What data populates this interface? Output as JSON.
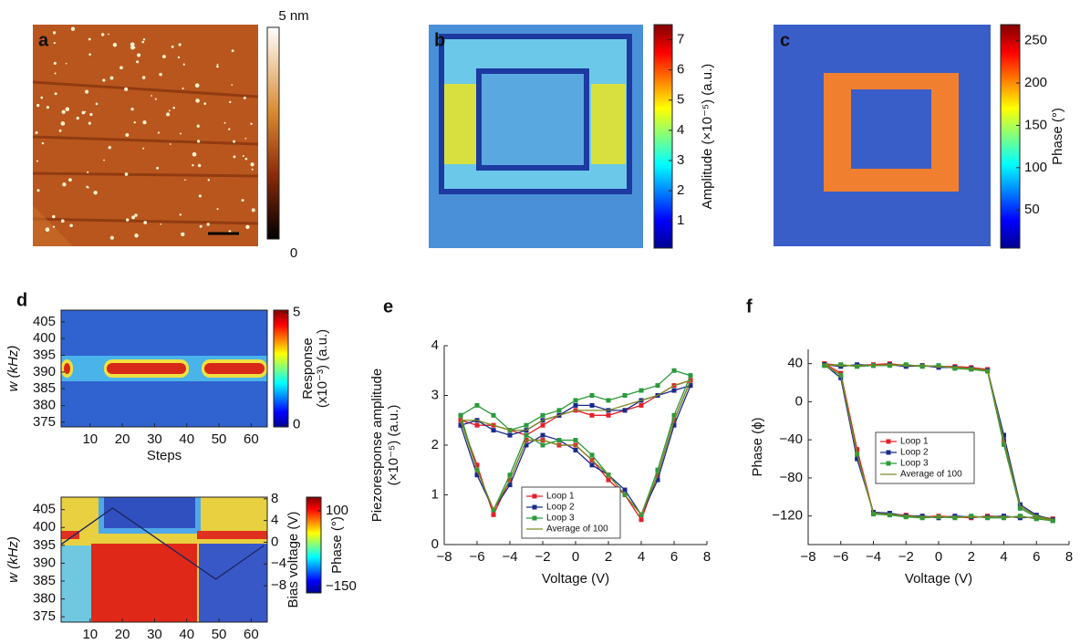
{
  "chart_data": [
    {
      "type": "image",
      "panel": "a",
      "colorbar": {
        "clim": [
          0,
          5
        ],
        "ticks": [
          {
            "value": 5,
            "label": "5 nm"
          },
          0
        ]
      }
    },
    {
      "type": "image",
      "panel": "b",
      "colorbar": {
        "label": [
          "Amplitude (×10⁻⁵) (a.u.)"
        ],
        "clim": [
          0.1,
          7.5
        ],
        "ticks": [
          1,
          2,
          3,
          4,
          5,
          6,
          7
        ]
      }
    },
    {
      "type": "image",
      "panel": "c",
      "colorbar": {
        "label": [
          "Phase (°)"
        ],
        "clim": [
          5,
          269
        ],
        "ticks": [
          50,
          100,
          150,
          200,
          250
        ]
      }
    },
    {
      "type": "heatmap",
      "panel": "d",
      "xlabel": "Steps",
      "ylabel": "w (kHz)",
      "xlim": [
        1,
        65
      ],
      "xticks": [
        10,
        20,
        30,
        40,
        50,
        60
      ],
      "ylim": [
        373.6,
        408.5
      ],
      "yticks": [
        375,
        380,
        385,
        390,
        395,
        400,
        405
      ],
      "colorbar": {
        "label": [
          "Response",
          "(x10⁻³) (a.u.)"
        ],
        "clim": [
          -0.1,
          5.1
        ],
        "ticks": [
          0,
          5
        ]
      }
    },
    {
      "type": "heatmap",
      "xlabel": "Steps",
      "ylabel": "w (kHz)",
      "y2label": "Bias voltage (V)",
      "xlim": [
        1,
        65
      ],
      "xticks": [
        10,
        20,
        30,
        40,
        50,
        60
      ],
      "ylim": [
        373.5,
        408.5
      ],
      "yticks": [
        375,
        380,
        385,
        390,
        395,
        400,
        405
      ],
      "y2lim": [
        -14.7,
        8.3
      ],
      "y2ticks": [
        {
          "value": -8,
          "label": "−8"
        },
        {
          "value": -4,
          "label": "−4"
        },
        0,
        4,
        8
      ],
      "series": [
        {
          "x": [
            1,
            17,
            49,
            64
          ],
          "values": [
            -0.4,
            6.3,
            -6.8,
            -0.6
          ],
          "axis": "y2",
          "color": "#1c2560"
        }
      ],
      "colorbar": {
        "label": [
          "Phase (°)"
        ],
        "clim": [
          -171,
          145
        ],
        "ticks": [
          {
            "value": -150,
            "label": "−150"
          },
          100
        ]
      }
    },
    {
      "type": "line",
      "panel": "e",
      "xlabel": "Voltage (V)",
      "ylabel": [
        "Piezoresponse amplitude",
        "(×10⁻⁵) (a.u.)"
      ],
      "xlim": [
        -8,
        8
      ],
      "xticks": [
        {
          "value": -8,
          "label": "−8"
        },
        {
          "value": -6,
          "label": "−6"
        },
        {
          "value": -4,
          "label": "−4"
        },
        {
          "value": -2,
          "label": "−2"
        },
        0,
        2,
        4,
        6,
        8
      ],
      "ylim": [
        0,
        4
      ],
      "yticks": [
        0,
        1,
        2,
        3,
        4
      ],
      "legend": "lower center",
      "x": [
        -7,
        -6,
        -5,
        -4,
        -3,
        -2,
        -1,
        0,
        1,
        2,
        3,
        4,
        5,
        6,
        7,
        7,
        6,
        5,
        4,
        3,
        2,
        1,
        0,
        -1,
        -2,
        -3,
        -4,
        -5,
        -6,
        -7
      ],
      "series": [
        {
          "name": "Loop 1",
          "color": "#e4202a",
          "style": "line-markers",
          "values": [
            2.5,
            1.6,
            0.6,
            1.3,
            2.1,
            2.1,
            2.0,
            2.0,
            1.7,
            1.3,
            1.0,
            0.5,
            1.4,
            2.5,
            3.3,
            3.3,
            3.2,
            3.0,
            2.8,
            2.7,
            2.6,
            2.6,
            2.7,
            2.6,
            2.4,
            2.2,
            2.3,
            2.4,
            2.4,
            2.5
          ]
        },
        {
          "name": "Loop 2",
          "color": "#1a2a8c",
          "style": "line-markers",
          "values": [
            2.4,
            1.4,
            0.7,
            1.2,
            2.0,
            2.2,
            2.1,
            1.9,
            1.6,
            1.4,
            1.1,
            0.6,
            1.3,
            2.4,
            3.2,
            3.2,
            3.1,
            3.0,
            2.9,
            2.7,
            2.7,
            2.8,
            2.8,
            2.6,
            2.5,
            2.3,
            2.2,
            2.3,
            2.5,
            2.4
          ]
        },
        {
          "name": "Loop 3",
          "color": "#2a9a3a",
          "style": "line-markers",
          "values": [
            2.6,
            1.5,
            0.7,
            1.4,
            2.2,
            2.0,
            2.1,
            2.1,
            1.8,
            1.4,
            1.0,
            0.6,
            1.5,
            2.6,
            3.4,
            3.4,
            3.5,
            3.2,
            3.1,
            3.0,
            2.9,
            3.0,
            2.9,
            2.7,
            2.6,
            2.4,
            2.3,
            2.6,
            2.8,
            2.6
          ]
        },
        {
          "name": "Average of 100",
          "color": "#7a8a20",
          "style": "line",
          "values": [
            2.5,
            1.5,
            0.7,
            1.3,
            2.1,
            2.1,
            2.0,
            2.0,
            1.7,
            1.4,
            1.0,
            0.6,
            1.4,
            2.5,
            3.3,
            3.3,
            3.2,
            3.0,
            2.9,
            2.8,
            2.7,
            2.7,
            2.7,
            2.6,
            2.5,
            2.3,
            2.3,
            2.4,
            2.5,
            2.5
          ]
        }
      ]
    },
    {
      "type": "line",
      "panel": "f",
      "xlabel": "Voltage (V)",
      "ylabel": [
        "Phase (ϕ)"
      ],
      "xlim": [
        -8,
        8
      ],
      "xticks": [
        {
          "value": -8,
          "label": "−8"
        },
        {
          "value": -6,
          "label": "−6"
        },
        {
          "value": -4,
          "label": "−4"
        },
        {
          "value": -2,
          "label": "−2"
        },
        0,
        2,
        4,
        6,
        8
      ],
      "ylim": [
        -150,
        55
      ],
      "yticks": [
        {
          "value": -120,
          "label": "−120"
        },
        {
          "value": -80,
          "label": "−80"
        },
        {
          "value": -40,
          "label": "−40"
        },
        0,
        40
      ],
      "legend": "center",
      "x": [
        -7,
        -6,
        -5,
        -4,
        -3,
        -2,
        -1,
        0,
        1,
        2,
        3,
        4,
        5,
        6,
        7,
        7,
        6,
        5,
        4,
        3,
        2,
        1,
        0,
        -1,
        -2,
        -3,
        -4,
        -5,
        -6,
        -7
      ],
      "series": [
        {
          "name": "Loop 1",
          "color": "#e4202a",
          "style": "line-markers",
          "values": [
            40,
            38,
            38,
            39,
            40,
            38,
            38,
            37,
            37,
            36,
            34,
            -40,
            -110,
            -120,
            -123,
            -123,
            -122,
            -121,
            -121,
            -120,
            -122,
            -121,
            -120,
            -121,
            -119,
            -118,
            -117,
            -50,
            30,
            40
          ]
        },
        {
          "name": "Loop 2",
          "color": "#1a2a8c",
          "style": "line-markers",
          "values": [
            39,
            37,
            39,
            38,
            39,
            37,
            38,
            36,
            36,
            35,
            33,
            -35,
            -108,
            -119,
            -124,
            -124,
            -121,
            -122,
            -120,
            -121,
            -121,
            -120,
            -122,
            -120,
            -120,
            -117,
            -116,
            -60,
            25,
            39
          ]
        },
        {
          "name": "Loop 3",
          "color": "#2a9a3a",
          "style": "line-markers",
          "values": [
            38,
            39,
            37,
            38,
            38,
            39,
            37,
            38,
            35,
            34,
            32,
            -45,
            -112,
            -121,
            -125,
            -125,
            -123,
            -120,
            -122,
            -122,
            -120,
            -122,
            -121,
            -122,
            -121,
            -119,
            -118,
            -55,
            28,
            38
          ]
        },
        {
          "name": "Average of 100",
          "color": "#7a8a20",
          "style": "line",
          "values": [
            39,
            38,
            38,
            38,
            39,
            38,
            38,
            37,
            36,
            35,
            33,
            -40,
            -110,
            -120,
            -124,
            -124,
            -122,
            -121,
            -121,
            -121,
            -121,
            -121,
            -121,
            -121,
            -120,
            -118,
            -117,
            -55,
            28,
            39
          ]
        }
      ]
    }
  ]
}
